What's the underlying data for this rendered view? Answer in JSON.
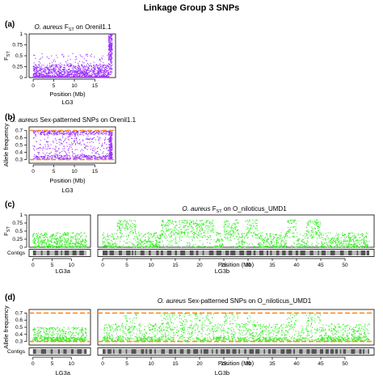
{
  "figure_title": "Linkage Group 3 SNPs",
  "chart_data": [
    {
      "panel": "(a)",
      "type": "scatter",
      "title_italic": "O. aureus",
      "title_rest": "F",
      "title_sub": "ST",
      "title_tail": "on Orenil1.1",
      "ylabel": "F",
      "ylabel_sub": "ST",
      "xlabel": "Position (Mb)",
      "group_label": "LG3",
      "xlim": [
        -1,
        20
      ],
      "ylim": [
        0,
        1
      ],
      "xticks": [
        0,
        5,
        10,
        15
      ],
      "yticks": [
        0,
        0.25,
        0.5,
        0.75,
        1
      ],
      "ytick_labels": [
        "0",
        "0.25",
        "0.5",
        "0.75",
        "1"
      ],
      "color": "#9b30ff",
      "series": [
        {
          "x_range": [
            0,
            19.2
          ],
          "baseline": [
            0,
            0.3
          ],
          "tail": [
            0.05,
            0.55
          ],
          "peak": {
            "x": [
              18.3,
              19.2
            ],
            "y": [
              0.55,
              1.0
            ]
          }
        }
      ]
    },
    {
      "panel": "(b)",
      "type": "scatter",
      "title_italic": "O. aureus",
      "title_rest": "Sex-patterned SNPs on Orenil1.1",
      "ylabel": "Allele frequency",
      "xlabel": "Position (Mb)",
      "group_label": "LG3",
      "xlim": [
        -1,
        20
      ],
      "ylim": [
        0.25,
        0.75
      ],
      "xticks": [
        0,
        5,
        10,
        15
      ],
      "yticks": [
        0.3,
        0.4,
        0.5,
        0.6,
        0.7
      ],
      "ytick_labels": [
        "0.3",
        "0.4",
        "0.5",
        "0.6",
        "0.7"
      ],
      "hlines": [
        0.3,
        0.7
      ],
      "hline_color": "#ff8c1a",
      "color": "#9b30ff",
      "series": [
        {
          "x_range": [
            0,
            19.2
          ],
          "bands": [
            [
              0.3,
              0.36
            ],
            [
              0.64,
              0.7
            ]
          ],
          "scatter": [
            0.36,
            0.64
          ],
          "peak": {
            "x": [
              18.4,
              19.2
            ],
            "y": [
              0.3,
              0.7
            ]
          }
        }
      ]
    },
    {
      "panel": "(c)",
      "type": "scatter",
      "title_italic": "O. aureus",
      "title_rest": "F",
      "title_sub": "ST",
      "title_tail": "on O_niloticus_UMD1",
      "ylabel": "F",
      "ylabel_sub": "ST",
      "xlabel": "Position (Mb)",
      "contig_label": "Contigs",
      "subpanels": [
        {
          "label": "LG3a",
          "xlim": [
            -1,
            15
          ],
          "xticks": [
            0,
            5,
            10
          ]
        },
        {
          "label": "LG3b",
          "xlim": [
            -1,
            56
          ],
          "xticks": [
            0,
            5,
            10,
            15,
            20,
            25,
            30,
            35,
            40,
            45,
            50
          ]
        }
      ],
      "ylim": [
        0,
        1
      ],
      "yticks": [
        0,
        0.25,
        0.5,
        0.75,
        1
      ],
      "ytick_labels": [
        "0",
        "0.25",
        "0.5",
        "0.75",
        "1"
      ],
      "color": "#33ee22",
      "series": [
        {
          "name": "LG3a",
          "x_range": [
            0,
            14
          ],
          "baseline": [
            0,
            0.45
          ]
        },
        {
          "name": "LG3b",
          "x_range": [
            0,
            55
          ],
          "baseline": [
            0,
            0.45
          ],
          "elevated_regions": [
            [
              3,
              7
            ],
            [
              12,
              23
            ],
            [
              25,
              28
            ],
            [
              29.5,
              32
            ],
            [
              38,
              40
            ],
            [
              42,
              45
            ]
          ],
          "elevated_y": [
            0.3,
            0.85
          ]
        }
      ]
    },
    {
      "panel": "(d)",
      "type": "scatter",
      "title_italic": "O. aureus",
      "title_rest": "Sex-patterned SNPs on O_niloticus_UMD1",
      "ylabel": "Allele frequency",
      "xlabel": "Position (Mb)",
      "contig_label": "Contigs",
      "subpanels": [
        {
          "label": "LG3a",
          "xlim": [
            -1,
            15
          ],
          "xticks": [
            0,
            5,
            10
          ]
        },
        {
          "label": "LG3b",
          "xlim": [
            -1,
            56
          ],
          "xticks": [
            0,
            5,
            10,
            15,
            20,
            25,
            30,
            35,
            40,
            45,
            50
          ]
        }
      ],
      "ylim": [
        0.25,
        0.75
      ],
      "yticks": [
        0.3,
        0.4,
        0.5,
        0.6,
        0.7
      ],
      "ytick_labels": [
        "0.3",
        "0.4",
        "0.5",
        "0.6",
        "0.7"
      ],
      "hlines": [
        0.3,
        0.7
      ],
      "hline_color": "#ff8c1a",
      "color": "#33ee22",
      "series": [
        {
          "name": "LG3a",
          "x_range": [
            0,
            14
          ],
          "bands": [
            [
              0.3,
              0.36
            ]
          ],
          "scatter": [
            0.36,
            0.5
          ]
        },
        {
          "name": "LG3b",
          "x_range": [
            0,
            55
          ],
          "bands": [
            [
              0.3,
              0.36
            ]
          ],
          "scatter": [
            0.36,
            0.55
          ],
          "dense_regions": [
            [
              4,
              7
            ],
            [
              12,
              23
            ],
            [
              25,
              28
            ],
            [
              29.5,
              32
            ],
            [
              38,
              40
            ],
            [
              42,
              45
            ]
          ],
          "dense_y": [
            0.3,
            0.7
          ]
        }
      ]
    }
  ],
  "colors": {
    "fst_a": "#9b30ff",
    "fst_c": "#33ee22",
    "hline": "#ff8c1a",
    "contig_dark": "#555555",
    "contig_light": "#bdbdbd"
  }
}
